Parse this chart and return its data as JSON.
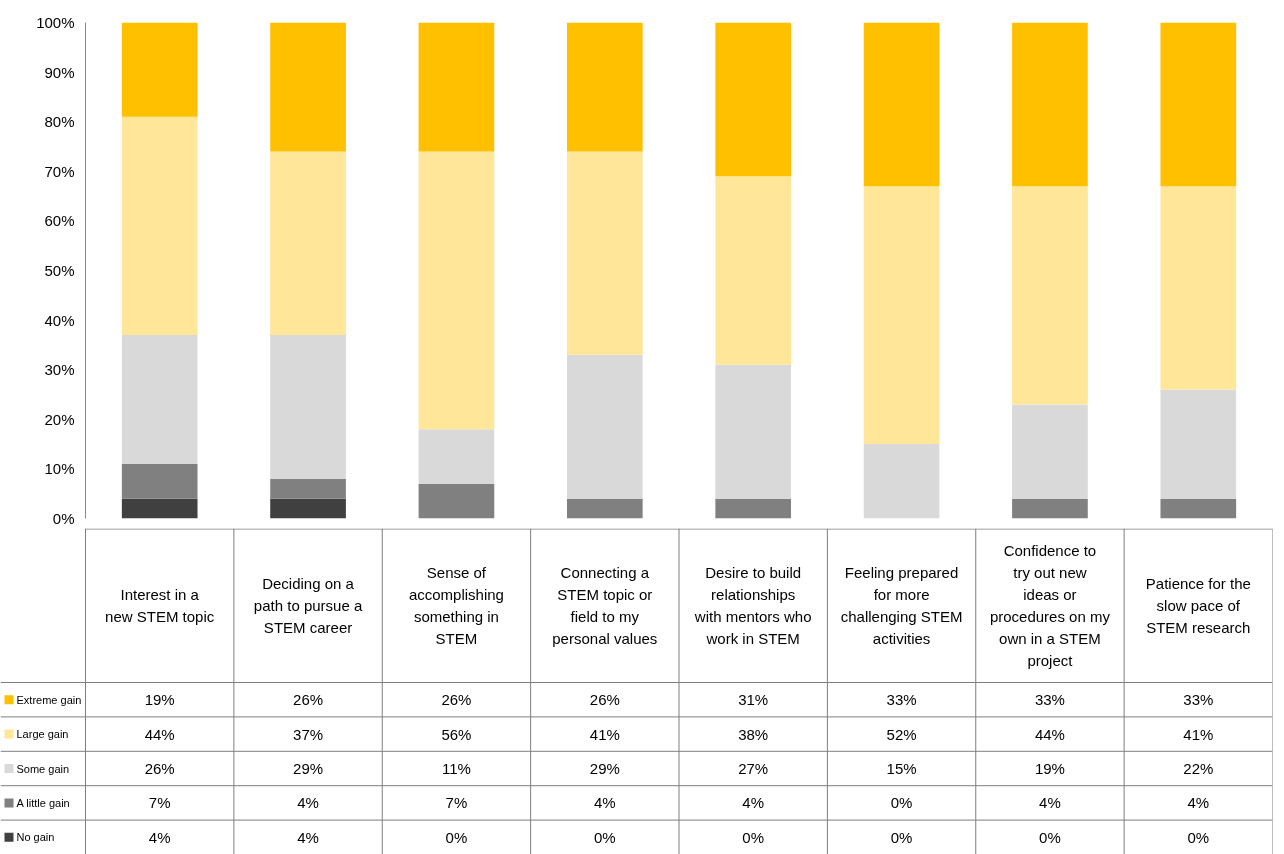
{
  "chart_data": {
    "type": "bar",
    "stacked": true,
    "categories": [
      "Interest in a new STEM topic",
      "Deciding on a path to pursue a STEM career",
      "Sense of accomplishing something in STEM",
      "Connecting a STEM topic or field to my personal values",
      "Desire to build relationships with mentors who work in STEM",
      "Feeling prepared for more challenging STEM activities",
      "Confidence to try out new ideas or procedures on my own in a STEM project",
      "Patience for the slow pace of STEM research"
    ],
    "series": [
      {
        "name": "No gain",
        "color": "#404040",
        "values": [
          4,
          4,
          0,
          0,
          0,
          0,
          0,
          0
        ],
        "value_labels": [
          "4%",
          "4%",
          "0%",
          "0%",
          "0%",
          "0%",
          "0%",
          "0%"
        ]
      },
      {
        "name": "A little gain",
        "color": "#808080",
        "values": [
          7,
          4,
          7,
          4,
          4,
          0,
          4,
          4
        ],
        "value_labels": [
          "7%",
          "4%",
          "7%",
          "4%",
          "4%",
          "0%",
          "4%",
          "4%"
        ]
      },
      {
        "name": "Some gain",
        "color": "#d9d9d9",
        "values": [
          26,
          29,
          11,
          29,
          27,
          15,
          19,
          22
        ],
        "value_labels": [
          "26%",
          "29%",
          "11%",
          "29%",
          "27%",
          "15%",
          "19%",
          "22%"
        ]
      },
      {
        "name": "Large gain",
        "color": "#ffe699",
        "values": [
          44,
          37,
          56,
          41,
          38,
          52,
          44,
          41
        ],
        "value_labels": [
          "44%",
          "37%",
          "56%",
          "41%",
          "38%",
          "52%",
          "44%",
          "41%"
        ]
      },
      {
        "name": "Extreme gain",
        "color": "#ffc000",
        "values": [
          19,
          26,
          26,
          26,
          31,
          33,
          33,
          33
        ],
        "value_labels": [
          "19%",
          "26%",
          "26%",
          "26%",
          "31%",
          "33%",
          "33%",
          "33%"
        ]
      }
    ],
    "legend": "bottom left",
    "ylim": [
      0,
      100
    ],
    "yticks": [
      {
        "value": 0,
        "label": "0%"
      },
      {
        "value": 10,
        "label": "10%"
      },
      {
        "value": 20,
        "label": "20%"
      },
      {
        "value": 30,
        "label": "30%"
      },
      {
        "value": 40,
        "label": "40%"
      },
      {
        "value": 50,
        "label": "50%"
      },
      {
        "value": 60,
        "label": "60%"
      },
      {
        "value": 70,
        "label": "70%"
      },
      {
        "value": 80,
        "label": "80%"
      },
      {
        "value": 90,
        "label": "90%"
      },
      {
        "value": 100,
        "label": "100%"
      }
    ]
  }
}
